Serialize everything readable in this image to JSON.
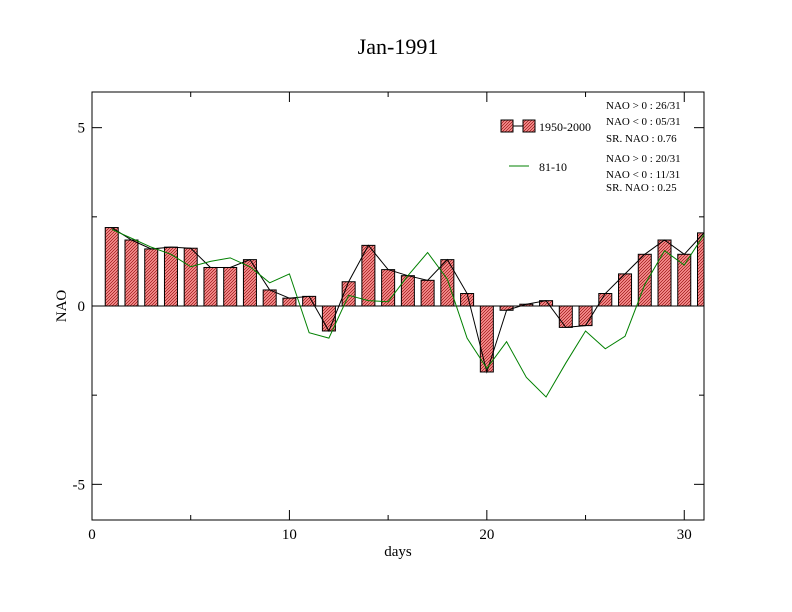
{
  "chart_data": {
    "type": "bar",
    "title": "Jan-1991",
    "xlabel": "days",
    "ylabel": "NAO",
    "xlim": [
      0,
      31
    ],
    "ylim": [
      -6,
      6
    ],
    "x_ticks": [
      0,
      10,
      20,
      30
    ],
    "x_tick_labels": [
      "0",
      "10",
      "20",
      "30"
    ],
    "y_ticks": [
      -5,
      0,
      5
    ],
    "y_tick_labels": [
      "-5",
      "0",
      "5"
    ],
    "grid": false,
    "legend_position": "top-right",
    "days": [
      1,
      2,
      3,
      4,
      5,
      6,
      7,
      8,
      9,
      10,
      11,
      12,
      13,
      14,
      15,
      16,
      17,
      18,
      19,
      20,
      21,
      22,
      23,
      24,
      25,
      26,
      27,
      28,
      29,
      30,
      31
    ],
    "series": [
      {
        "name": "1950-2000",
        "style": "bar+line",
        "color": "#f08080",
        "values": [
          2.2,
          1.85,
          1.6,
          1.65,
          1.62,
          1.08,
          1.08,
          1.3,
          0.45,
          0.22,
          0.27,
          -0.7,
          0.68,
          1.7,
          1.02,
          0.85,
          0.72,
          1.3,
          0.35,
          -1.85,
          -0.12,
          0.05,
          0.15,
          -0.6,
          -0.55,
          0.35,
          0.9,
          1.45,
          1.85,
          1.45,
          2.05
        ]
      },
      {
        "name": "81-10",
        "style": "line",
        "color": "#008000",
        "values": [
          2.15,
          1.9,
          1.65,
          1.45,
          1.1,
          1.25,
          1.35,
          1.1,
          0.65,
          0.9,
          -0.75,
          -0.9,
          0.3,
          0.15,
          0.12,
          0.85,
          1.5,
          0.75,
          -0.9,
          -1.75,
          -1.0,
          -2.0,
          -2.55,
          -1.6,
          -0.7,
          -1.2,
          -0.85,
          0.6,
          1.55,
          1.15,
          2.0
        ]
      }
    ],
    "stats": [
      [
        "NAO > 0 : 26/31",
        "NAO < 0 : 05/31",
        "SR. NAO :  0.76"
      ],
      [
        "NAO > 0 : 20/31",
        "NAO < 0 : 11/31",
        "SR. NAO :  0.25"
      ]
    ]
  }
}
